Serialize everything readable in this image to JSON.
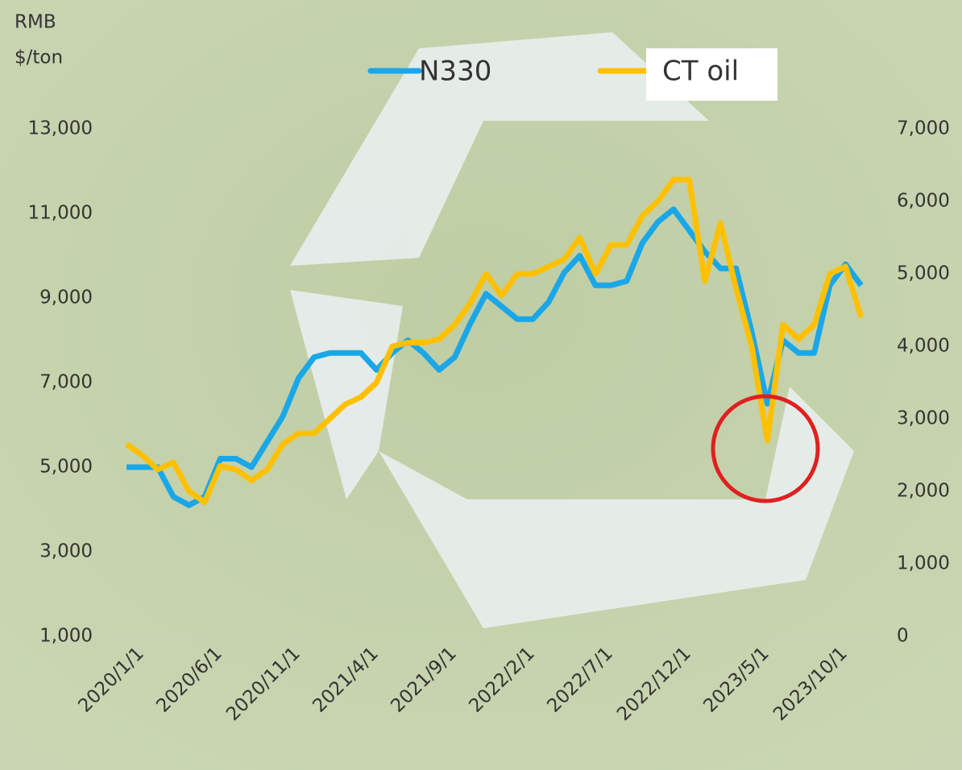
{
  "chart_data": {
    "type": "line",
    "ylabel": [
      "RMB",
      "$/ton"
    ],
    "categories": [
      "2020/1/1",
      null,
      null,
      null,
      null,
      "2020/6/1",
      null,
      null,
      null,
      null,
      "2020/11/1",
      null,
      null,
      null,
      null,
      "2021/4/1",
      null,
      null,
      null,
      null,
      "2021/9/1",
      null,
      null,
      null,
      null,
      "2022/2/1",
      null,
      null,
      null,
      null,
      "2022/7/1",
      null,
      null,
      null,
      null,
      "2022/12/1",
      null,
      null,
      null,
      null,
      "2023/5/1",
      null,
      null,
      null,
      null,
      "2023/10/1",
      null,
      null
    ],
    "series": [
      {
        "name": "N330",
        "color": "#1aa7e8",
        "values": [
          5000,
          5000,
          5000,
          4300,
          4100,
          4300,
          5200,
          5200,
          5000,
          5600,
          6200,
          7100,
          7600,
          7700,
          7700,
          7700,
          7300,
          7700,
          8000,
          7700,
          7300,
          7600,
          8400,
          9100,
          8800,
          8500,
          8500,
          8900,
          9600,
          10000,
          9300,
          9300,
          9400,
          10300,
          10800,
          11100,
          10600,
          10100,
          9700,
          9700,
          8200,
          6500,
          8000,
          7700,
          7700,
          9300,
          9800,
          9300
        ]
      },
      {
        "name": "CT oil",
        "color": "#ffc000",
        "axis": "y2",
        "values": [
          2650,
          2500,
          2300,
          2400,
          2000,
          1850,
          2350,
          2300,
          2150,
          2300,
          2650,
          2800,
          2800,
          3000,
          3200,
          3300,
          3500,
          4000,
          4050,
          4050,
          4100,
          4300,
          4600,
          5000,
          4700,
          5000,
          5000,
          5100,
          5200,
          5500,
          5000,
          5400,
          5400,
          5800,
          6000,
          6300,
          6300,
          4900,
          5700,
          4800,
          4000,
          2700,
          4300,
          4100,
          4300,
          5000,
          5100,
          4400
        ]
      }
    ],
    "ylim": [
      1000,
      13000
    ],
    "yticks": [
      {
        "value": 1000,
        "label": "1,000"
      },
      {
        "value": 3000,
        "label": "3,000"
      },
      {
        "value": 5000,
        "label": "5,000"
      },
      {
        "value": 7000,
        "label": "7,000"
      },
      {
        "value": 9000,
        "label": "9,000"
      },
      {
        "value": 11000,
        "label": "11,000"
      },
      {
        "value": 13000,
        "label": "13,000"
      }
    ],
    "y2lim": [
      0,
      7000
    ],
    "y2ticks": [
      0,
      {
        "value": 1000,
        "label": "1,000"
      },
      {
        "value": 2000,
        "label": "2,000"
      },
      {
        "value": 3000,
        "label": "3,000"
      },
      {
        "value": 4000,
        "label": "4,000"
      },
      {
        "value": 5000,
        "label": "5,000"
      },
      {
        "value": 6000,
        "label": "6,000"
      },
      {
        "value": 7000,
        "label": "7,000"
      }
    ],
    "legend": "top"
  }
}
